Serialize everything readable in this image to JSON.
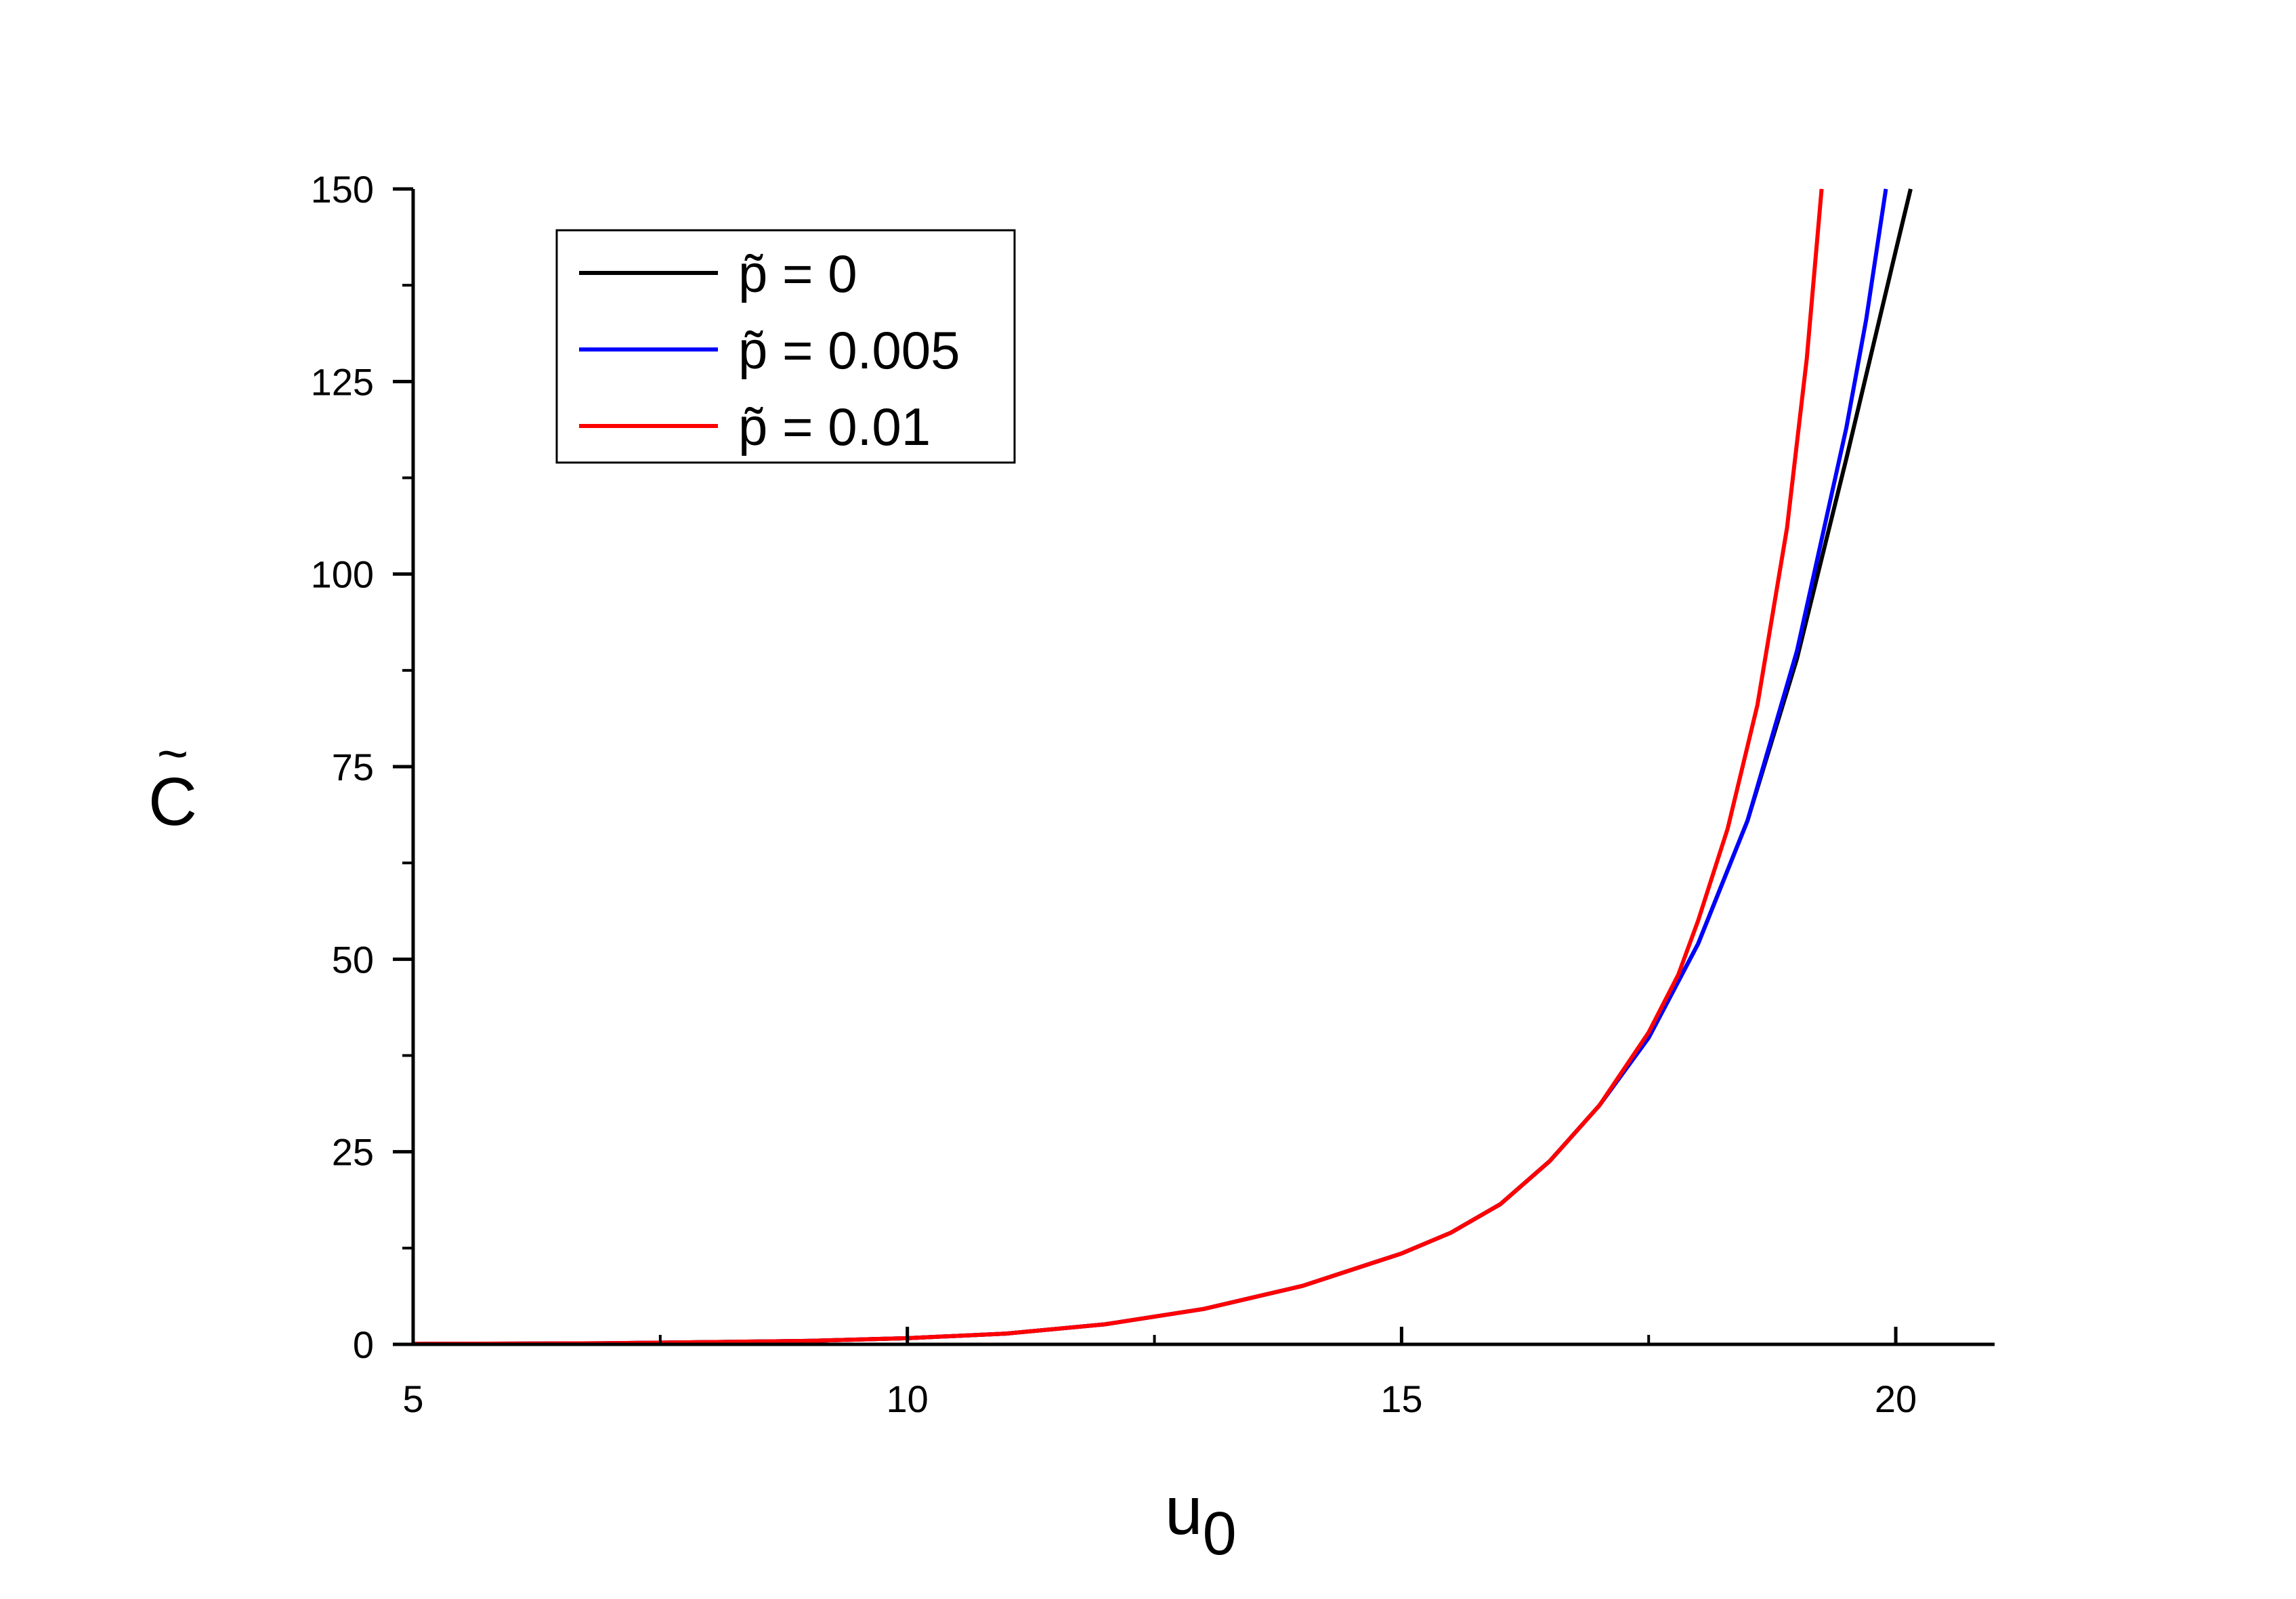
{
  "chart_data": {
    "type": "line",
    "title": "",
    "xlabel": "u",
    "xlabel_sub": "0",
    "ylabel": "C",
    "ylabel_accent": "~",
    "xlim": [
      5,
      21
    ],
    "ylim": [
      0,
      150
    ],
    "x_ticks": [
      5,
      10,
      15,
      20
    ],
    "x_tick_labels": [
      "5",
      "10",
      "15",
      "20"
    ],
    "y_ticks": [
      0,
      25,
      50,
      75,
      100,
      125,
      150
    ],
    "y_tick_labels": [
      "0",
      "25",
      "50",
      "75",
      "100",
      "125",
      "150"
    ],
    "grid": false,
    "legend_position": "top-left",
    "series": [
      {
        "name": "p̃ = 0",
        "color": "#000000",
        "x": [
          5,
          7,
          9,
          10,
          11,
          12,
          13,
          14,
          15,
          15.5,
          16,
          16.5,
          17,
          17.5,
          18,
          18.5,
          19,
          19.5,
          20,
          20.15
        ],
        "y": [
          0.05,
          0.15,
          0.45,
          0.8,
          1.4,
          2.6,
          4.6,
          7.6,
          11.8,
          14.5,
          18.2,
          23.8,
          31,
          39.8,
          52,
          68,
          89,
          115,
          142,
          150
        ]
      },
      {
        "name": "p̃ = 0.005",
        "color": "#0000ff",
        "x": [
          5,
          7,
          9,
          10,
          11,
          12,
          13,
          14,
          15,
          15.5,
          16,
          16.5,
          17,
          17.5,
          18,
          18.5,
          19,
          19.5,
          19.7,
          19.9
        ],
        "y": [
          0.05,
          0.15,
          0.45,
          0.8,
          1.4,
          2.6,
          4.6,
          7.6,
          11.8,
          14.5,
          18.2,
          23.8,
          31,
          39.8,
          52,
          68,
          90,
          119,
          133,
          150
        ]
      },
      {
        "name": "p̃ = 0.01",
        "color": "#ff0000",
        "x": [
          5,
          7,
          9,
          10,
          11,
          12,
          13,
          14,
          15,
          15.5,
          16,
          16.5,
          17,
          17.5,
          17.8,
          18,
          18.3,
          18.6,
          18.9,
          19.1,
          19.25
        ],
        "y": [
          0.05,
          0.15,
          0.45,
          0.8,
          1.4,
          2.6,
          4.6,
          7.6,
          11.8,
          14.5,
          18.2,
          23.8,
          31,
          40.5,
          48,
          55,
          67,
          83,
          106,
          128,
          150
        ]
      }
    ]
  }
}
